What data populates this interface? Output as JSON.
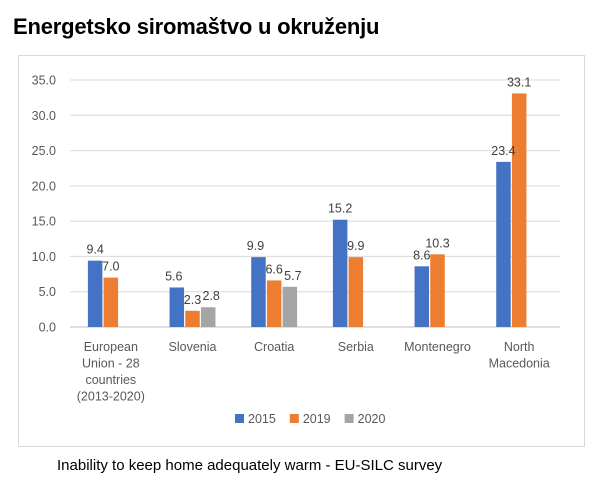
{
  "page": {
    "title": "Energetsko siromaštvo u okruženju",
    "caption": "Inability to keep home adequately warm - EU-SILC survey"
  },
  "chart_data": {
    "type": "bar",
    "title": "",
    "xlabel": "",
    "ylabel": "",
    "ylim": [
      0,
      35
    ],
    "yticks": [
      "0.0",
      "5.0",
      "10.0",
      "15.0",
      "20.0",
      "25.0",
      "30.0",
      "35.0"
    ],
    "grid": true,
    "legend_position": "bottom",
    "categories": [
      [
        "European",
        "Union - 28",
        "countries",
        "(2013-2020)"
      ],
      [
        "Slovenia"
      ],
      [
        "Croatia"
      ],
      [
        "Serbia"
      ],
      [
        "Montenegro"
      ],
      [
        "North",
        "Macedonia"
      ]
    ],
    "series": [
      {
        "name": "2015",
        "color": "#4472c4",
        "values": [
          9.4,
          5.6,
          9.9,
          15.2,
          8.6,
          23.4
        ]
      },
      {
        "name": "2019",
        "color": "#ed7d31",
        "values": [
          7.0,
          2.3,
          6.6,
          9.9,
          10.3,
          33.1
        ]
      },
      {
        "name": "2020",
        "color": "#a5a5a5",
        "values": [
          null,
          2.8,
          5.7,
          null,
          null,
          null
        ]
      }
    ]
  }
}
